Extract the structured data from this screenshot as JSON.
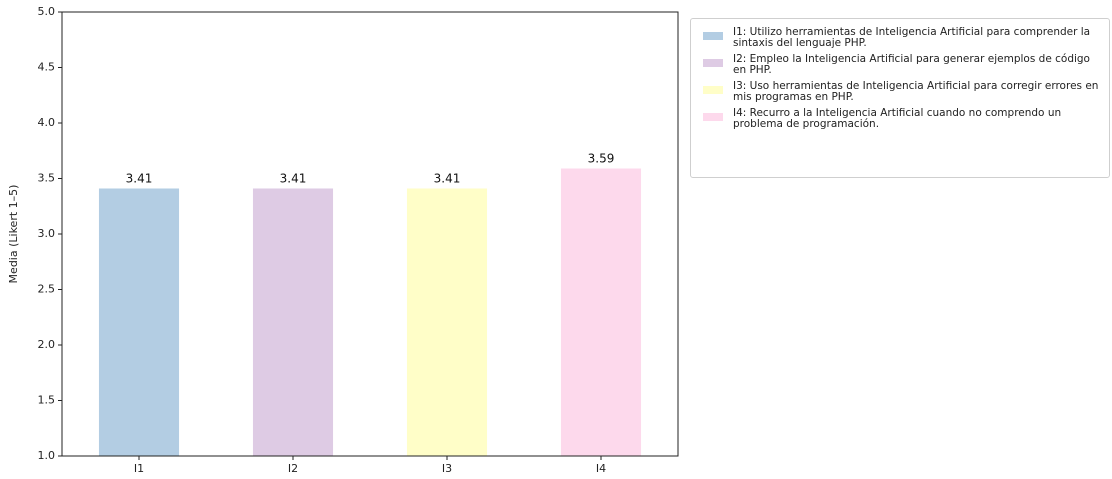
{
  "chart_data": {
    "type": "bar",
    "categories": [
      "I1",
      "I2",
      "I3",
      "I4"
    ],
    "values": [
      3.41,
      3.41,
      3.41,
      3.59
    ],
    "data_labels": [
      "3.41",
      "3.41",
      "3.41",
      "3.59"
    ],
    "colors": [
      "#b3cde3",
      "#decbe4",
      "#fffec8",
      "#fdd9ec"
    ],
    "title": "",
    "xlabel": "",
    "ylabel": "Media (Likert 1–5)",
    "ylim": [
      1.0,
      5.0
    ],
    "yticks": [
      "1.0",
      "1.5",
      "2.0",
      "2.5",
      "3.0",
      "3.5",
      "4.0",
      "4.5",
      "5.0"
    ],
    "grid": false,
    "legend_position": "outside-right-top",
    "legend": [
      "I1: Utilizo herramientas de Inteligencia Artificial para comprender la sintaxis del lenguaje PHP.",
      "I2: Empleo la Inteligencia Artificial para generar ejemplos de código en PHP.",
      "I3: Uso herramientas de Inteligencia Artificial para corregir errores en mis programas en PHP.",
      "I4: Recurro a la Inteligencia Artificial cuando no comprendo un problema de programación."
    ]
  }
}
